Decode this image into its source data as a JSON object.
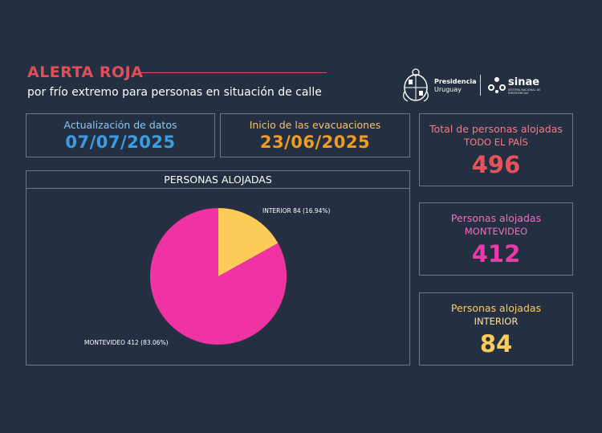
{
  "header": {
    "title": "ALERTA ROJA",
    "subtitle": "por frío extremo para personas en situación de calle",
    "logos": {
      "presidencia_line1": "Presidencia",
      "presidencia_line2": "Uruguay",
      "sinae": "sinae",
      "sinae_small": "SISTEMA NACIONAL DE EMERGENCIAS"
    }
  },
  "cards": {
    "update": {
      "label": "Actualización de datos",
      "value": "07/07/2025"
    },
    "evacuations": {
      "label": "Inicio de las evacuaciones",
      "value": "23/06/2025"
    }
  },
  "stats": {
    "total": {
      "label": "Total de personas alojadas",
      "sublabel": "TODO EL PAÍS",
      "value": "496"
    },
    "montevideo": {
      "label": "Personas alojadas",
      "sublabel": "MONTEVIDEO",
      "value": "412"
    },
    "interior": {
      "label": "Personas alojadas",
      "sublabel": "INTERIOR",
      "value": "84"
    }
  },
  "chart_data": {
    "type": "pie",
    "title": "PERSONAS ALOJADAS",
    "slices": [
      {
        "name": "INTERIOR",
        "value": 84,
        "percent": 16.94,
        "label": "INTERIOR 84 (16.94%)",
        "color": "#fdcb58"
      },
      {
        "name": "MONTEVIDEO",
        "value": 412,
        "percent": 83.06,
        "label": "MONTEVIDEO 412 (83.06%)",
        "color": "#ef33a3"
      }
    ]
  },
  "colors": {
    "background": "#243041",
    "alert_red": "#e04e5a",
    "update_blue": "#3a9ee6",
    "update_label": "#8cc8f0",
    "evac_orange": "#f29c1f",
    "evac_label": "#f5c26b",
    "total_red": "#e8525d",
    "total_label": "#f07d88",
    "montevideo_pink": "#e63da8",
    "interior_yellow": "#fdcb58"
  }
}
